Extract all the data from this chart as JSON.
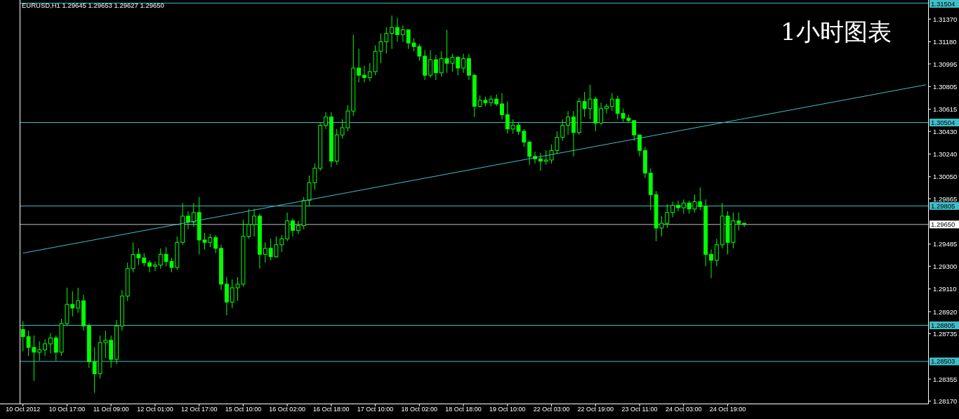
{
  "chart_data": {
    "type": "candlestick",
    "title": "EURUSD,H1  1.29645 1.29653 1.29627 1.29650",
    "annotations": [
      "1小时图表"
    ],
    "categories": [
      "10 Oct 2012",
      null,
      null,
      null,
      null,
      null,
      null,
      null,
      "10 Oct 17:00",
      null,
      null,
      null,
      null,
      null,
      null,
      null,
      "11 Oct 09:00",
      null,
      null,
      null,
      null,
      null,
      null,
      null,
      "12 Oct 01:00",
      null,
      null,
      null,
      null,
      null,
      null,
      null,
      "12 Oct 17:00",
      null,
      null,
      null,
      null,
      null,
      null,
      null,
      "15 Oct 10:00",
      null,
      null,
      null,
      null,
      null,
      null,
      null,
      "16 Oct 02:00",
      null,
      null,
      null,
      null,
      null,
      null,
      null,
      "16 Oct 18:00",
      null,
      null,
      null,
      null,
      null,
      null,
      null,
      "17 Oct 10:00",
      null,
      null,
      null,
      null,
      null,
      null,
      null,
      "18 Oct 02:00",
      null,
      null,
      null,
      null,
      null,
      null,
      null,
      "18 Oct 18:00",
      null,
      null,
      null,
      null,
      null,
      null,
      null,
      "19 Oct 10:00",
      null,
      null,
      null,
      null,
      null,
      null,
      null,
      "22 Oct 03:00",
      null,
      null,
      null,
      null,
      null,
      null,
      null,
      "22 Oct 19:00",
      null,
      null,
      null,
      null,
      null,
      null,
      null,
      "23 Oct 11:00",
      null,
      null,
      null,
      null,
      null,
      null,
      null,
      "24 Oct 03:00",
      null,
      null,
      null,
      null,
      null,
      null,
      null,
      "24 Oct 19:00",
      null,
      null,
      null,
      null,
      null,
      null,
      null,
      null,
      null,
      null,
      null,
      null,
      null,
      null,
      null,
      null,
      null,
      null,
      null,
      null,
      null,
      null,
      null,
      null,
      null,
      null,
      null,
      null,
      null,
      null,
      null,
      null,
      null,
      null,
      null,
      null
    ],
    "color": "#00ff00",
    "ohlc": [
      [
        1.2877,
        1.2884,
        1.2859,
        1.2871
      ],
      [
        1.2871,
        1.2876,
        1.2855,
        1.2862
      ],
      [
        1.2862,
        1.2872,
        1.2834,
        1.2858
      ],
      [
        1.2858,
        1.2867,
        1.2851,
        1.286
      ],
      [
        1.286,
        1.2869,
        1.2855,
        1.2865
      ],
      [
        1.2865,
        1.2874,
        1.2857,
        1.287
      ],
      [
        1.287,
        1.2872,
        1.2851,
        1.2858
      ],
      [
        1.2858,
        1.2886,
        1.2855,
        1.2882
      ],
      [
        1.2882,
        1.2912,
        1.288,
        1.2898
      ],
      [
        1.2898,
        1.2909,
        1.2888,
        1.2895
      ],
      [
        1.2895,
        1.2912,
        1.2891,
        1.2901
      ],
      [
        1.2901,
        1.2906,
        1.2876,
        1.288
      ],
      [
        1.288,
        1.2882,
        1.2845,
        1.285
      ],
      [
        1.285,
        1.2862,
        1.2824,
        1.284
      ],
      [
        1.284,
        1.2872,
        1.2836,
        1.2866
      ],
      [
        1.2866,
        1.2876,
        1.2853,
        1.2868
      ],
      [
        1.2868,
        1.2872,
        1.2845,
        1.2852
      ],
      [
        1.2852,
        1.2885,
        1.2848,
        1.288
      ],
      [
        1.288,
        1.291,
        1.2876,
        1.2905
      ],
      [
        1.2905,
        1.2933,
        1.2901,
        1.2928
      ],
      [
        1.2928,
        1.295,
        1.2925,
        1.294
      ],
      [
        1.294,
        1.2945,
        1.2931,
        1.2937
      ],
      [
        1.2937,
        1.2941,
        1.293,
        1.2933
      ],
      [
        1.2933,
        1.2935,
        1.2925,
        1.293
      ],
      [
        1.293,
        1.2934,
        1.2926,
        1.2931
      ],
      [
        1.2931,
        1.2945,
        1.2928,
        1.294
      ],
      [
        1.294,
        1.2946,
        1.293,
        1.2934
      ],
      [
        1.2934,
        1.2937,
        1.2925,
        1.2929
      ],
      [
        1.2929,
        1.2955,
        1.2927,
        1.295
      ],
      [
        1.295,
        1.2983,
        1.2948,
        1.2972
      ],
      [
        1.2972,
        1.2976,
        1.2961,
        1.2967
      ],
      [
        1.2967,
        1.2983,
        1.2963,
        1.2975
      ],
      [
        1.2975,
        1.2988,
        1.294,
        1.2952
      ],
      [
        1.2952,
        1.2958,
        1.2944,
        1.295
      ],
      [
        1.295,
        1.2957,
        1.2946,
        1.2954
      ],
      [
        1.2954,
        1.2956,
        1.2941,
        1.2945
      ],
      [
        1.2945,
        1.2948,
        1.291,
        1.2915
      ],
      [
        1.2915,
        1.2921,
        1.2889,
        1.29
      ],
      [
        1.29,
        1.2919,
        1.2895,
        1.2912
      ],
      [
        1.2912,
        1.2921,
        1.2901,
        1.2915
      ],
      [
        1.2915,
        1.2969,
        1.2913,
        1.2955
      ],
      [
        1.2955,
        1.2978,
        1.2953,
        1.2965
      ],
      [
        1.2965,
        1.2978,
        1.2955,
        1.2972
      ],
      [
        1.2972,
        1.2974,
        1.2928,
        1.294
      ],
      [
        1.294,
        1.295,
        1.2933,
        1.2945
      ],
      [
        1.2945,
        1.2953,
        1.2935,
        1.2938
      ],
      [
        1.2938,
        1.2955,
        1.2937,
        1.2948
      ],
      [
        1.2948,
        1.2956,
        1.2942,
        1.2953
      ],
      [
        1.2953,
        1.2975,
        1.2951,
        1.2968
      ],
      [
        1.2968,
        1.297,
        1.2955,
        1.296
      ],
      [
        1.296,
        1.2968,
        1.2957,
        1.2964
      ],
      [
        1.2964,
        1.2988,
        1.2961,
        1.2985
      ],
      [
        1.2985,
        1.3006,
        1.298,
        1.3
      ],
      [
        1.3,
        1.3016,
        1.2994,
        1.3012
      ],
      [
        1.3012,
        1.305,
        1.301,
        1.3048
      ],
      [
        1.3048,
        1.3059,
        1.3045,
        1.3055
      ],
      [
        1.3055,
        1.3059,
        1.3013,
        1.3018
      ],
      [
        1.3018,
        1.3045,
        1.3015,
        1.304
      ],
      [
        1.304,
        1.3053,
        1.3037,
        1.3046
      ],
      [
        1.3046,
        1.3065,
        1.3043,
        1.306
      ],
      [
        1.306,
        1.3124,
        1.3056,
        1.3096
      ],
      [
        1.3096,
        1.3112,
        1.3084,
        1.309
      ],
      [
        1.309,
        1.3098,
        1.3084,
        1.3088
      ],
      [
        1.3088,
        1.31,
        1.3085,
        1.3093
      ],
      [
        1.3093,
        1.3115,
        1.309,
        1.311
      ],
      [
        1.311,
        1.3125,
        1.31,
        1.3118
      ],
      [
        1.3118,
        1.313,
        1.3108,
        1.3125
      ],
      [
        1.3125,
        1.314,
        1.3112,
        1.313
      ],
      [
        1.313,
        1.3138,
        1.3118,
        1.3124
      ],
      [
        1.3124,
        1.3132,
        1.3118,
        1.3128
      ],
      [
        1.3128,
        1.3128,
        1.3112,
        1.3117
      ],
      [
        1.3117,
        1.3121,
        1.311,
        1.3114
      ],
      [
        1.3114,
        1.3116,
        1.3102,
        1.3106
      ],
      [
        1.3106,
        1.3111,
        1.3086,
        1.309
      ],
      [
        1.309,
        1.3111,
        1.3088,
        1.3103
      ],
      [
        1.3103,
        1.3107,
        1.3086,
        1.3092
      ],
      [
        1.3092,
        1.311,
        1.3089,
        1.3104
      ],
      [
        1.3104,
        1.3128,
        1.3092,
        1.31
      ],
      [
        1.31,
        1.3108,
        1.3093,
        1.3105
      ],
      [
        1.3105,
        1.3106,
        1.309,
        1.3096
      ],
      [
        1.3096,
        1.3108,
        1.3092,
        1.3104
      ],
      [
        1.3104,
        1.3108,
        1.3086,
        1.309
      ],
      [
        1.309,
        1.3091,
        1.3055,
        1.3064
      ],
      [
        1.3064,
        1.3073,
        1.3063,
        1.3069
      ],
      [
        1.3069,
        1.3072,
        1.3064,
        1.3067
      ],
      [
        1.3067,
        1.3073,
        1.3064,
        1.307
      ],
      [
        1.307,
        1.3074,
        1.3064,
        1.3066
      ],
      [
        1.3066,
        1.3075,
        1.3053,
        1.3057
      ],
      [
        1.3057,
        1.3068,
        1.3041,
        1.3045
      ],
      [
        1.3045,
        1.3053,
        1.3041,
        1.3048
      ],
      [
        1.3048,
        1.3051,
        1.304,
        1.3043
      ],
      [
        1.3043,
        1.3045,
        1.303,
        1.3034
      ],
      [
        1.3034,
        1.3035,
        1.3015,
        1.3022
      ],
      [
        1.3022,
        1.3026,
        1.3016,
        1.302
      ],
      [
        1.302,
        1.3025,
        1.301,
        1.3018
      ],
      [
        1.3018,
        1.3027,
        1.3015,
        1.3019
      ],
      [
        1.3019,
        1.3032,
        1.3016,
        1.3027
      ],
      [
        1.3027,
        1.3043,
        1.3024,
        1.3038
      ],
      [
        1.3038,
        1.3053,
        1.3035,
        1.3048
      ],
      [
        1.3048,
        1.306,
        1.304,
        1.3055
      ],
      [
        1.3055,
        1.306,
        1.3022,
        1.3042
      ],
      [
        1.3042,
        1.3071,
        1.304,
        1.3068
      ],
      [
        1.3068,
        1.3076,
        1.3055,
        1.3062
      ],
      [
        1.3062,
        1.3082,
        1.3053,
        1.307
      ],
      [
        1.307,
        1.3072,
        1.3043,
        1.305
      ],
      [
        1.305,
        1.3067,
        1.3048,
        1.3062
      ],
      [
        1.3062,
        1.3066,
        1.3058,
        1.3064
      ],
      [
        1.3064,
        1.3075,
        1.306,
        1.307
      ],
      [
        1.307,
        1.3073,
        1.3053,
        1.3058
      ],
      [
        1.3058,
        1.3062,
        1.3051,
        1.3054
      ],
      [
        1.3054,
        1.3057,
        1.305,
        1.3052
      ],
      [
        1.3052,
        1.3052,
        1.3035,
        1.304
      ],
      [
        1.304,
        1.304,
        1.3022,
        1.3027
      ],
      [
        1.3027,
        1.303,
        1.3004,
        1.3008
      ],
      [
        1.3008,
        1.3012,
        1.2977,
        1.299
      ],
      [
        1.299,
        1.2993,
        1.2951,
        1.2962
      ],
      [
        1.2962,
        1.2972,
        1.2955,
        1.2966
      ],
      [
        1.2966,
        1.2982,
        1.2962,
        1.2975
      ],
      [
        1.2975,
        1.2984,
        1.2971,
        1.2981
      ],
      [
        1.2981,
        1.2985,
        1.2976,
        1.2979
      ],
      [
        1.2979,
        1.2986,
        1.2974,
        1.2983
      ],
      [
        1.2983,
        1.2985,
        1.2974,
        1.2978
      ],
      [
        1.2978,
        1.299,
        1.2975,
        1.2984
      ],
      [
        1.2984,
        1.2996,
        1.2977,
        1.298
      ],
      [
        1.298,
        1.2986,
        1.293,
        1.294
      ],
      [
        1.294,
        1.2944,
        1.292,
        1.2935
      ],
      [
        1.2935,
        1.2953,
        1.293,
        1.2948
      ],
      [
        1.2948,
        1.2983,
        1.2945,
        1.2972
      ],
      [
        1.2972,
        1.2976,
        1.294,
        1.295
      ],
      [
        1.295,
        1.2975,
        1.2945,
        1.2968
      ],
      [
        1.2968,
        1.2975,
        1.296,
        1.2966
      ],
      [
        1.2966,
        1.2966,
        1.2963,
        1.2965
      ],
      null,
      null,
      null,
      null,
      null,
      null,
      null,
      null,
      null,
      null,
      null,
      null,
      null,
      null,
      null,
      null,
      null,
      null,
      null,
      null,
      null,
      null,
      null,
      null,
      null,
      null,
      null,
      null,
      null,
      null,
      null,
      null,
      null
    ],
    "series": [
      {
        "type": "line",
        "color": "#3fbfc8",
        "values": [
          1.2941,
          null,
          null,
          null,
          null,
          null,
          null,
          null,
          null,
          null,
          null,
          null,
          null,
          null,
          null,
          null,
          null,
          null,
          null,
          null,
          null,
          null,
          null,
          null,
          null,
          null,
          null,
          null,
          null,
          null,
          null,
          null,
          null,
          null,
          null,
          null,
          null,
          null,
          null,
          null,
          null,
          null,
          null,
          null,
          null,
          null,
          null,
          null,
          null,
          null,
          null,
          null,
          null,
          null,
          null,
          null,
          null,
          null,
          null,
          null,
          null,
          null,
          null,
          null,
          null,
          null,
          null,
          null,
          null,
          null,
          null,
          null,
          null,
          null,
          null,
          null,
          null,
          null,
          null,
          null,
          null,
          null,
          null,
          null,
          null,
          null,
          null,
          null,
          null,
          null,
          null,
          null,
          null,
          null,
          null,
          null,
          null,
          null,
          null,
          null,
          null,
          null,
          null,
          null,
          null,
          null,
          null,
          null,
          null,
          null,
          null,
          null,
          null,
          null,
          null,
          null,
          null,
          null,
          null,
          null,
          null,
          null,
          null,
          null,
          null,
          null,
          null,
          null,
          null,
          null,
          null,
          null,
          null,
          null,
          null,
          null,
          null,
          null,
          null,
          null,
          null,
          null,
          null,
          null,
          null,
          null,
          null,
          null,
          null,
          null,
          null,
          null,
          null,
          null,
          null,
          null,
          null,
          null,
          null,
          null,
          null,
          null,
          null,
          null,
          1.3082
        ]
      }
    ],
    "ylim": [
      1.2815,
      1.3153
    ],
    "yticks": [
      {
        "value": 1.3137,
        "label": "1.31370"
      },
      {
        "value": 1.3118,
        "label": "1.31180"
      },
      {
        "value": 1.30995,
        "label": "1.30995"
      },
      {
        "value": 1.30805,
        "label": "1.30805"
      },
      {
        "value": 1.30615,
        "label": "1.30615"
      },
      {
        "value": 1.3043,
        "label": "1.30430"
      },
      {
        "value": 1.3024,
        "label": "1.30240"
      },
      {
        "value": 1.3005,
        "label": "1.30050"
      },
      {
        "value": 1.29865,
        "label": "1.29865"
      },
      {
        "value": 1.29485,
        "label": "1.29485"
      },
      {
        "value": 1.293,
        "label": "1.29300"
      },
      {
        "value": 1.2911,
        "label": "1.29110"
      },
      {
        "value": 1.2892,
        "label": "1.28920"
      },
      {
        "value": 1.28735,
        "label": "1.28735"
      },
      {
        "value": 1.28355,
        "label": "1.28355"
      },
      {
        "value": 1.2817,
        "label": "1.28170"
      }
    ],
    "ref_lines": [
      {
        "axis": "y",
        "value": 1.31504,
        "label": "1.31504",
        "color": "#3fbfc8"
      },
      {
        "axis": "y",
        "value": 1.30504,
        "label": "1.30504",
        "color": "#3fbfc8"
      },
      {
        "axis": "y",
        "value": 1.29805,
        "label": "1.29805",
        "color": "#3fbfc8"
      },
      {
        "axis": "y",
        "value": 1.2965,
        "label": "1.29650",
        "color": "#c0c0c0"
      },
      {
        "axis": "y",
        "value": 1.28805,
        "label": "1.28805",
        "color": "#3fbfc8"
      },
      {
        "axis": "y",
        "value": 1.28503,
        "label": "1.28503",
        "color": "#3fbfc8"
      }
    ]
  }
}
